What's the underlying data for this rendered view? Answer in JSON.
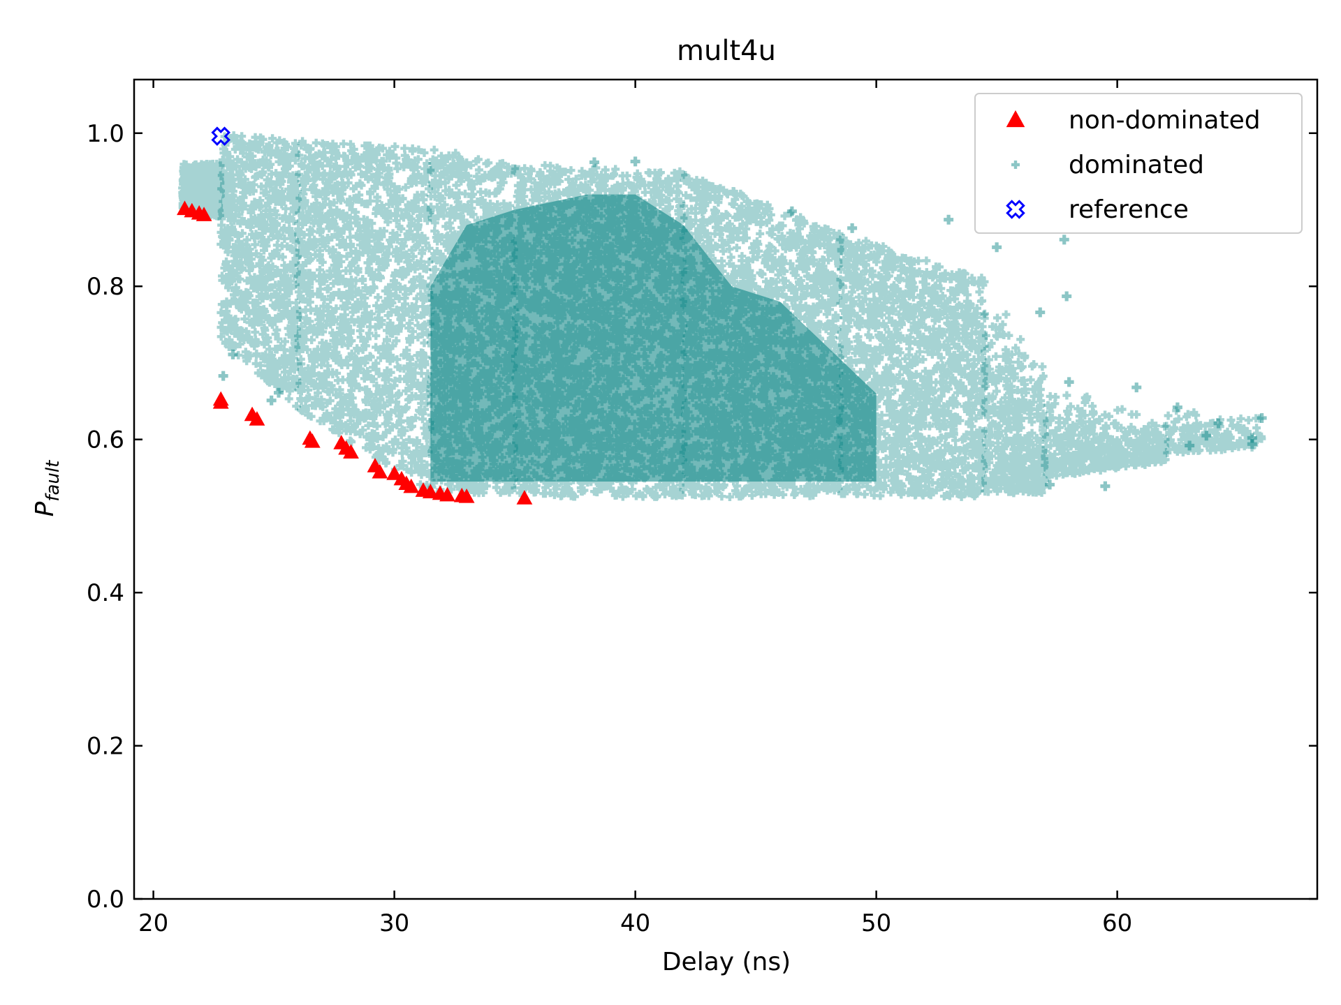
{
  "chart_data": {
    "type": "scatter",
    "title": "mult4u",
    "xlabel": "Delay (ns)",
    "ylabel_main": "P",
    "ylabel_sub": "fault",
    "xlim": [
      19.2,
      68.3
    ],
    "ylim": [
      0.0,
      1.07
    ],
    "xticks": [
      20,
      30,
      40,
      50,
      60
    ],
    "yticks": [
      0.0,
      0.2,
      0.4,
      0.6,
      0.8,
      1.0
    ],
    "xtick_labels": [
      "20",
      "30",
      "40",
      "50",
      "60"
    ],
    "ytick_labels": [
      "0.0",
      "0.2",
      "0.4",
      "0.6",
      "0.8",
      "1.0"
    ],
    "grid": false,
    "legend_position": "top-right",
    "series": [
      {
        "name": "non-dominated",
        "marker": "triangle",
        "color": "#ff0000",
        "points": [
          [
            21.3,
            0.901
          ],
          [
            21.6,
            0.898
          ],
          [
            21.9,
            0.895
          ],
          [
            22.1,
            0.893
          ],
          [
            22.8,
            0.652
          ],
          [
            22.8,
            0.648
          ],
          [
            24.1,
            0.632
          ],
          [
            24.3,
            0.626
          ],
          [
            26.5,
            0.601
          ],
          [
            26.6,
            0.597
          ],
          [
            27.8,
            0.595
          ],
          [
            28.0,
            0.588
          ],
          [
            28.2,
            0.583
          ],
          [
            29.2,
            0.565
          ],
          [
            29.4,
            0.557
          ],
          [
            30.0,
            0.555
          ],
          [
            30.3,
            0.548
          ],
          [
            30.5,
            0.542
          ],
          [
            30.7,
            0.538
          ],
          [
            31.2,
            0.533
          ],
          [
            31.5,
            0.531
          ],
          [
            31.9,
            0.529
          ],
          [
            32.2,
            0.527
          ],
          [
            32.8,
            0.526
          ],
          [
            33.0,
            0.525
          ],
          [
            35.4,
            0.523
          ]
        ]
      },
      {
        "name": "dominated",
        "marker": "plus",
        "color": "#008080",
        "regions": [
          {
            "x": [
              21.2,
              22.8
            ],
            "lower": [
              0.9,
              0.89
            ],
            "upper": [
              0.96,
              0.96
            ],
            "density": 0.9
          },
          {
            "x": [
              22.8,
              26.0
            ],
            "lower": [
              0.73,
              0.64
            ],
            "upper": [
              1.0,
              0.99
            ],
            "density": 0.85
          },
          {
            "x": [
              26.0,
              31.5
            ],
            "lower": [
              0.64,
              0.53
            ],
            "upper": [
              0.99,
              0.98
            ],
            "density": 0.85
          },
          {
            "x": [
              31.5,
              35.0
            ],
            "lower": [
              0.53,
              0.525
            ],
            "upper": [
              0.98,
              0.96
            ],
            "density": 1.0
          },
          {
            "x": [
              35.0,
              42.0
            ],
            "lower": [
              0.525,
              0.525
            ],
            "upper": [
              0.96,
              0.95
            ],
            "density": 1.0
          },
          {
            "x": [
              42.0,
              48.5
            ],
            "lower": [
              0.525,
              0.525
            ],
            "upper": [
              0.95,
              0.87
            ],
            "density": 0.95
          },
          {
            "x": [
              48.5,
              54.5
            ],
            "lower": [
              0.525,
              0.525
            ],
            "upper": [
              0.87,
              0.81
            ],
            "density": 0.85
          },
          {
            "x": [
              54.5,
              57.0
            ],
            "lower": [
              0.53,
              0.53
            ],
            "upper": [
              0.81,
              0.7
            ],
            "density": 0.6
          },
          {
            "x": [
              57.0,
              62.0
            ],
            "lower": [
              0.55,
              0.57
            ],
            "upper": [
              0.68,
              0.62
            ],
            "density": 0.3
          },
          {
            "x": [
              62.0,
              66.0
            ],
            "lower": [
              0.58,
              0.59
            ],
            "upper": [
              0.65,
              0.63
            ],
            "density": 0.12
          }
        ],
        "outliers": [
          [
            40.0,
            0.963
          ],
          [
            38.3,
            0.962
          ],
          [
            46.5,
            0.898
          ],
          [
            49.0,
            0.876
          ],
          [
            53.0,
            0.887
          ],
          [
            55.0,
            0.851
          ],
          [
            57.8,
            0.861
          ],
          [
            57.9,
            0.787
          ],
          [
            56.8,
            0.766
          ],
          [
            58.0,
            0.675
          ],
          [
            60.8,
            0.668
          ],
          [
            62.5,
            0.642
          ],
          [
            63.7,
            0.605
          ],
          [
            65.6,
            0.602
          ],
          [
            65.6,
            0.594
          ],
          [
            66.0,
            0.628
          ],
          [
            64.2,
            0.621
          ],
          [
            59.5,
            0.539
          ],
          [
            57.2,
            0.541
          ],
          [
            63.0,
            0.592
          ],
          [
            22.9,
            0.683
          ],
          [
            23.3,
            0.711
          ],
          [
            24.9,
            0.651
          ],
          [
            25.2,
            0.661
          ]
        ]
      },
      {
        "name": "reference",
        "marker": "x-circle",
        "color": "#0000ff",
        "points": [
          [
            22.8,
            0.996
          ]
        ]
      }
    ]
  }
}
